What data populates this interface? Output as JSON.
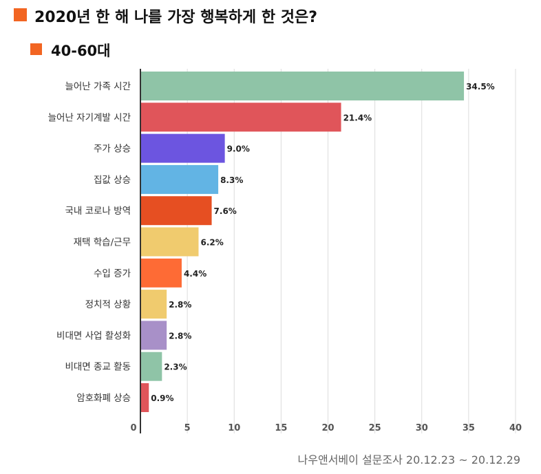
{
  "header": {
    "title": "2020년 한 해 나를 가장 행복하게 한 것은?",
    "subtitle": "40-60대",
    "accent": "#f26522"
  },
  "source": "나우앤서베이 설문조사 20.12.23 ~ 20.12.29",
  "chart_data": {
    "type": "bar",
    "orientation": "horizontal",
    "categories": [
      "늘어난 가족 시간",
      "늘어난 자기계발 시간",
      "주가 상승",
      "집값 상승",
      "국내 코로나 방역",
      "재택 학습/근무",
      "수입 증가",
      "정치적 상황",
      "비대면 사업 활성화",
      "비대면 종교 활동",
      "암호화폐 상승"
    ],
    "values": [
      34.5,
      21.4,
      9.0,
      8.3,
      7.6,
      6.2,
      4.4,
      2.8,
      2.8,
      2.3,
      0.9
    ],
    "value_labels": [
      "34.5%",
      "21.4%",
      "9.0%",
      "8.3%",
      "7.6%",
      "6.2%",
      "4.4%",
      "2.8%",
      "2.8%",
      "2.3%",
      "0.9%"
    ],
    "colors": [
      "#8fc4a7",
      "#e0555a",
      "#6c55e0",
      "#62b4e4",
      "#e64f22",
      "#f0cb6e",
      "#fe6b35",
      "#f0cb6e",
      "#a890c8",
      "#8fc4a7",
      "#e0555a"
    ],
    "xlim": [
      0,
      40
    ],
    "xticks": [
      0,
      5,
      10,
      15,
      20,
      25,
      30,
      35,
      40
    ],
    "grid": true
  }
}
